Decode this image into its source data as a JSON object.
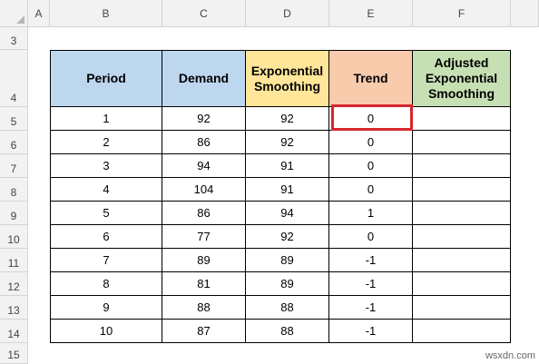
{
  "spreadsheet": {
    "columns": [
      "A",
      "B",
      "C",
      "D",
      "E",
      "F"
    ],
    "rows": [
      "3",
      "4",
      "5",
      "6",
      "7",
      "8",
      "9",
      "10",
      "11",
      "12",
      "13",
      "14",
      "15"
    ]
  },
  "table": {
    "headers": [
      "Period",
      "Demand",
      "Exponential Smoothing",
      "Trend",
      "Adjusted Exponential Smoothing"
    ],
    "header_colors": [
      "#bdd7ee",
      "#bdd7ee",
      "#ffe699",
      "#f8cbad",
      "#c6e0b4"
    ],
    "rows": [
      [
        "1",
        "92",
        "92",
        "0",
        ""
      ],
      [
        "2",
        "86",
        "92",
        "0",
        ""
      ],
      [
        "3",
        "94",
        "91",
        "0",
        ""
      ],
      [
        "4",
        "104",
        "91",
        "0",
        ""
      ],
      [
        "5",
        "86",
        "94",
        "1",
        ""
      ],
      [
        "6",
        "77",
        "92",
        "0",
        ""
      ],
      [
        "7",
        "89",
        "89",
        "-1",
        ""
      ],
      [
        "8",
        "81",
        "89",
        "-1",
        ""
      ],
      [
        "9",
        "88",
        "88",
        "-1",
        ""
      ],
      [
        "10",
        "87",
        "88",
        "-1",
        ""
      ]
    ],
    "selected_cell": "E5",
    "selection_color": "#d7272e"
  },
  "watermark": "wsxdn.com"
}
